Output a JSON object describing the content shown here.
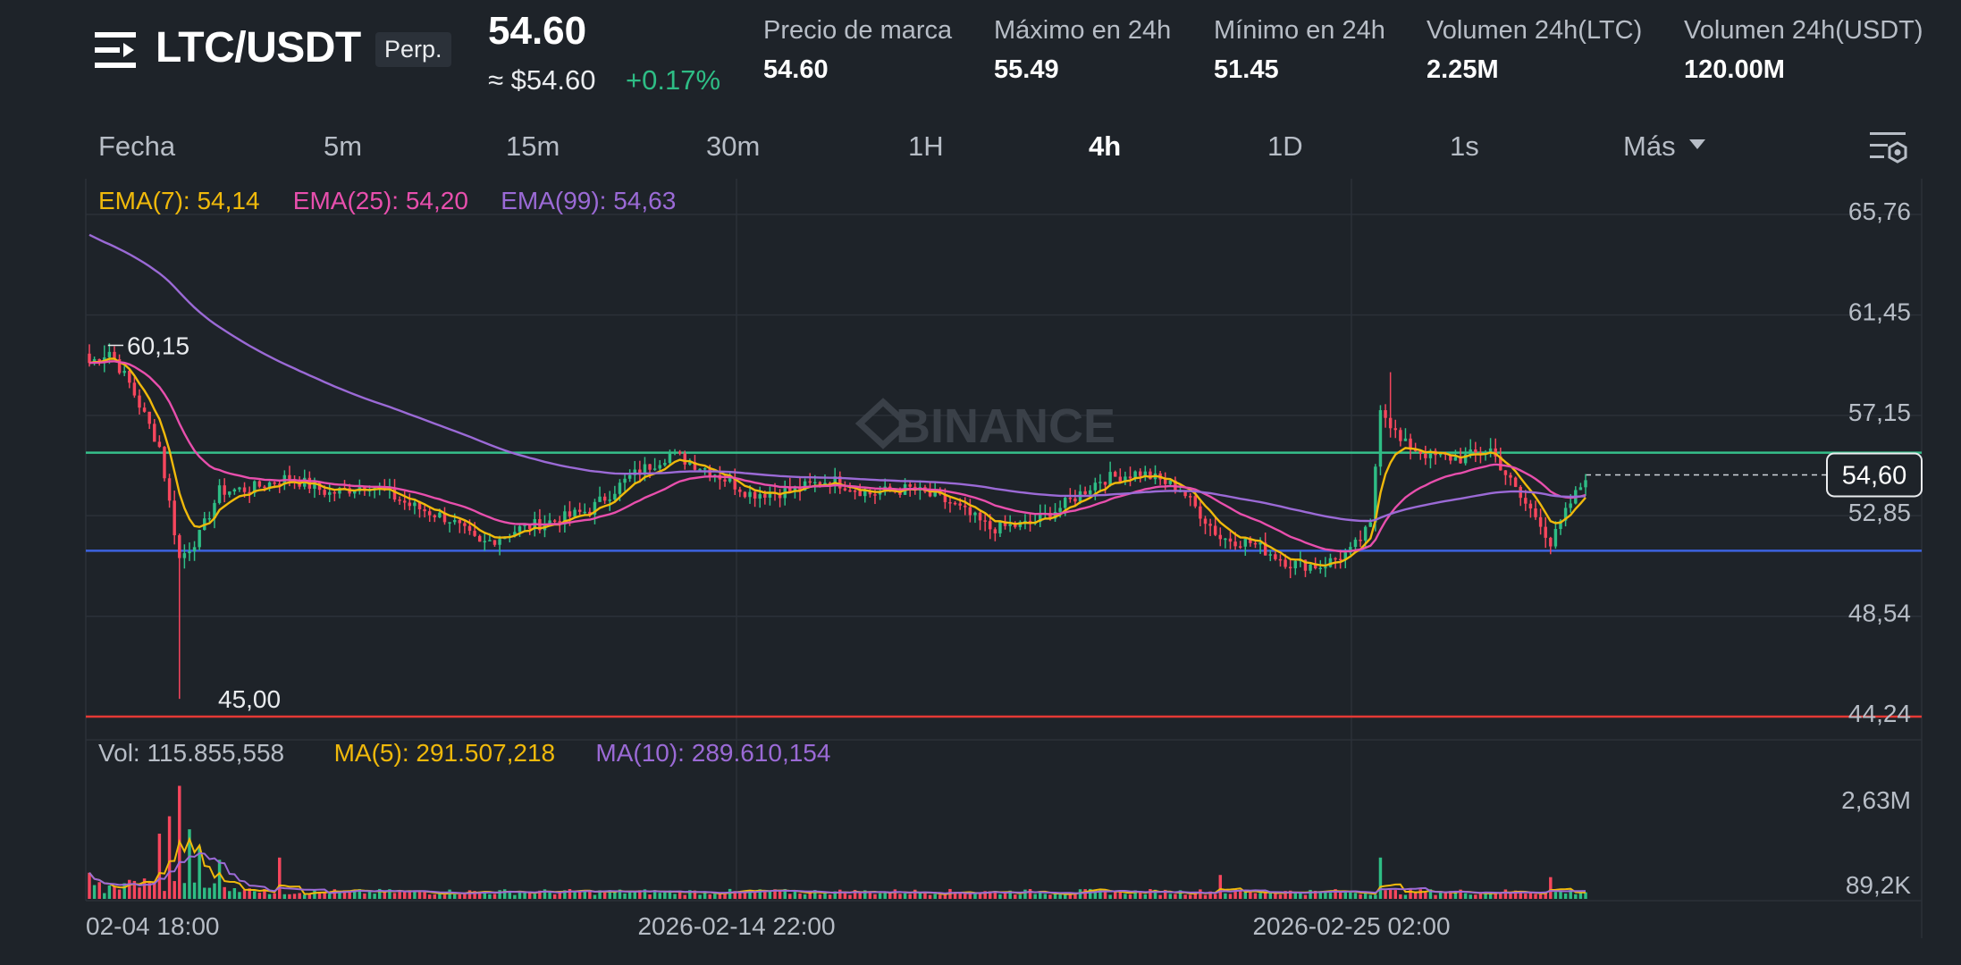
{
  "header": {
    "pair": "LTC/USDT",
    "contract_type": "Perp.",
    "last_price": "54.60",
    "price_usd": "≈ $54.60",
    "change_pct": "+0.17%",
    "stats": [
      {
        "label": "Precio de marca",
        "value": "54.60"
      },
      {
        "label": "Máximo en 24h",
        "value": "55.49"
      },
      {
        "label": "Mínimo en 24h",
        "value": "51.45"
      },
      {
        "label": "Volumen 24h(LTC)",
        "value": "2.25M"
      },
      {
        "label": "Volumen 24h(USDT)",
        "value": "120.00M"
      }
    ]
  },
  "toolbar": {
    "timeframes": [
      "Fecha",
      "5m",
      "15m",
      "30m",
      "1H",
      "4h",
      "1D",
      "1s"
    ],
    "active": "4h",
    "more_label": "Más"
  },
  "colors": {
    "up": "#2ebd85",
    "down": "#f6465d",
    "ema7": "#f0b90b",
    "ema25": "#e84fad",
    "ema99": "#9b6ad6",
    "support_line": "#3d63e0",
    "resistance_line": "#36c08a",
    "floor_line": "#e53935"
  },
  "chart_data": {
    "type": "candlestick",
    "interval": "4h",
    "watermark": "BINANCE",
    "price_axis": {
      "ticks": [
        "65,76",
        "61,45",
        "57,15",
        "52,85",
        "48,54",
        "44,24"
      ],
      "tick_values": [
        65.76,
        61.45,
        57.15,
        52.85,
        48.54,
        44.24
      ],
      "current_price_label": "54,60",
      "current_price": 54.6
    },
    "annotations": {
      "high_label": "60,15",
      "high": 60.15,
      "low_label": "45,00",
      "low": 45.0
    },
    "horizontal_lines": [
      {
        "name": "resistance",
        "price": 55.55,
        "color": "#36c08a"
      },
      {
        "name": "support",
        "price": 51.35,
        "color": "#3d63e0"
      },
      {
        "name": "floor",
        "price": 44.24,
        "color": "#e53935"
      }
    ],
    "x_labels": [
      "02-04 18:00",
      "2026-02-14 22:00",
      "2026-02-25 02:00"
    ],
    "ema_legend": [
      {
        "label": "EMA(7): 54,14",
        "color": "#f0b90b"
      },
      {
        "label": "EMA(25): 54,20",
        "color": "#e84fad"
      },
      {
        "label": "EMA(99): 54,63",
        "color": "#9b6ad6"
      }
    ],
    "price_knots": [
      [
        0,
        59.4
      ],
      [
        4,
        59.9
      ],
      [
        8,
        58.5
      ],
      [
        14,
        55.8
      ],
      [
        18,
        51.0
      ],
      [
        22,
        52.0
      ],
      [
        26,
        53.9
      ],
      [
        32,
        54.0
      ],
      [
        40,
        54.5
      ],
      [
        48,
        53.8
      ],
      [
        56,
        54.2
      ],
      [
        64,
        53.3
      ],
      [
        72,
        52.7
      ],
      [
        78,
        51.6
      ],
      [
        86,
        52.3
      ],
      [
        94,
        52.7
      ],
      [
        100,
        53.1
      ],
      [
        108,
        54.5
      ],
      [
        116,
        55.5
      ],
      [
        124,
        54.8
      ],
      [
        132,
        53.8
      ],
      [
        140,
        53.9
      ],
      [
        148,
        54.4
      ],
      [
        156,
        53.8
      ],
      [
        164,
        54.0
      ],
      [
        172,
        53.4
      ],
      [
        180,
        52.3
      ],
      [
        188,
        52.5
      ],
      [
        194,
        53.2
      ],
      [
        202,
        54.4
      ],
      [
        210,
        54.7
      ],
      [
        218,
        54.0
      ],
      [
        226,
        51.9
      ],
      [
        232,
        51.7
      ],
      [
        240,
        50.8
      ],
      [
        246,
        50.7
      ],
      [
        252,
        51.3
      ],
      [
        256,
        52.4
      ],
      [
        258,
        57.6
      ],
      [
        262,
        56.0
      ],
      [
        268,
        55.4
      ],
      [
        274,
        55.3
      ],
      [
        280,
        55.7
      ],
      [
        286,
        53.6
      ],
      [
        290,
        52.6
      ],
      [
        292,
        51.6
      ],
      [
        296,
        53.4
      ],
      [
        298,
        54.1
      ],
      [
        299,
        54.6
      ]
    ],
    "candle_count": 300,
    "volume": {
      "legend": [
        {
          "label": "Vol: 115.855,558",
          "color": "#b7bdc6"
        },
        {
          "label": "MA(5): 291.507,218",
          "color": "#f0b90b"
        },
        {
          "label": "MA(10): 289.610,154",
          "color": "#9b6ad6"
        }
      ],
      "ticks": [
        "2,63M",
        "89,2K"
      ],
      "tick_values": [
        2630000,
        89200
      ],
      "bars_max": 2630000,
      "spikes": [
        {
          "i": 14,
          "v": 1500000
        },
        {
          "i": 16,
          "v": 1900000
        },
        {
          "i": 18,
          "v": 2600000
        },
        {
          "i": 20,
          "v": 1600000
        },
        {
          "i": 22,
          "v": 1200000
        },
        {
          "i": 26,
          "v": 900000
        },
        {
          "i": 38,
          "v": 950000
        },
        {
          "i": 258,
          "v": 950000
        },
        {
          "i": 226,
          "v": 550000
        },
        {
          "i": 292,
          "v": 500000
        }
      ]
    }
  }
}
